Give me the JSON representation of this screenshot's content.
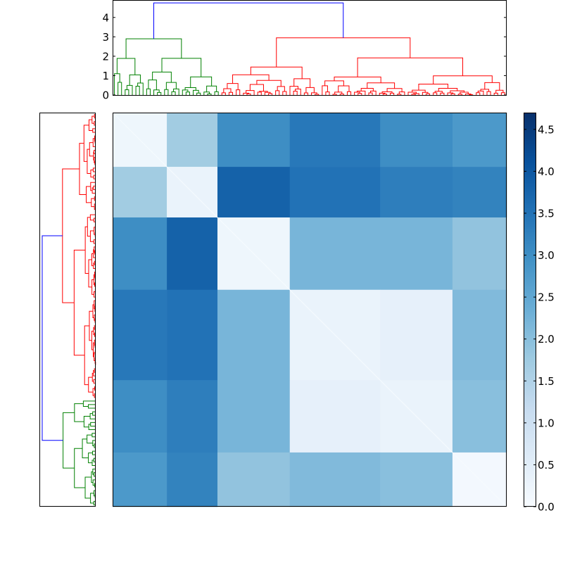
{
  "chart_data": [
    {
      "type": "dendrogram",
      "orientation": "top",
      "title": "",
      "xlabel": "",
      "ylabel": "",
      "ylim": [
        0,
        4.9
      ],
      "yticks": [
        0,
        1,
        2,
        3,
        4
      ],
      "ytick_labels": [
        "0",
        "1",
        "2",
        "3",
        "4"
      ],
      "colors": {
        "link_root": "#0000ff",
        "cluster_a": "#008000",
        "cluster_b": "#ff0000"
      },
      "merges": [
        {
          "cluster": "root",
          "height": 4.75
        },
        {
          "cluster": "cluster_a",
          "height": 2.9
        },
        {
          "cluster": "cluster_b",
          "height": 2.95
        }
      ]
    },
    {
      "type": "dendrogram",
      "orientation": "left",
      "title": "",
      "colors": {
        "link_root": "#0000ff",
        "cluster_a": "#008000",
        "cluster_b": "#ff0000"
      }
    },
    {
      "type": "heatmap",
      "title": "",
      "colormap": "Blues",
      "color_range": [
        0.0,
        4.7
      ],
      "block_order": [
        "A1",
        "A2",
        "B1",
        "B2",
        "B3",
        "B4"
      ],
      "block_sizes": [
        15,
        14,
        20,
        25,
        20,
        15
      ],
      "block_values": [
        [
          0.2,
          1.7,
          3.0,
          3.4,
          3.0,
          2.8
        ],
        [
          1.7,
          0.3,
          3.8,
          3.5,
          3.3,
          3.2
        ],
        [
          3.0,
          3.8,
          0.2,
          2.2,
          2.2,
          1.9
        ],
        [
          3.4,
          3.5,
          2.2,
          0.3,
          0.4,
          2.1
        ],
        [
          3.0,
          3.3,
          2.2,
          0.4,
          0.3,
          2.0
        ],
        [
          2.8,
          3.2,
          1.9,
          2.1,
          2.0,
          0.1
        ]
      ],
      "colorbar": {
        "ticks": [
          0.0,
          0.5,
          1.0,
          1.5,
          2.0,
          2.5,
          3.0,
          3.5,
          4.0,
          4.5
        ],
        "tick_labels": [
          "0.0",
          "0.5",
          "1.0",
          "1.5",
          "2.0",
          "2.5",
          "3.0",
          "3.5",
          "4.0",
          "4.5"
        ]
      }
    }
  ]
}
